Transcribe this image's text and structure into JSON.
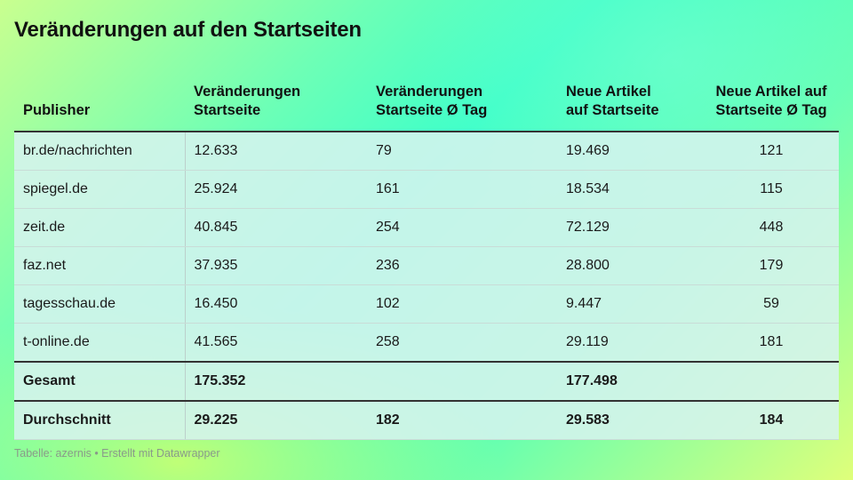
{
  "title": "Veränderungen auf den Startseiten",
  "footer": "Tabelle: azernis • Erstellt mit Datawrapper",
  "chart_data": {
    "type": "table",
    "title": "Veränderungen auf den Startseiten",
    "columns": [
      {
        "l1": "Publisher",
        "l2": ""
      },
      {
        "l1": "Veränderungen",
        "l2": "Startseite"
      },
      {
        "l1": "Veränderungen",
        "l2": "Startseite Ø Tag"
      },
      {
        "l1": "Neue Artikel",
        "l2": "auf Startseite"
      },
      {
        "l1": "Neue Artikel auf",
        "l2": "Startseite Ø Tag"
      }
    ],
    "rows": [
      [
        "br.de/nachrichten",
        "12.633",
        "79",
        "19.469",
        "121"
      ],
      [
        "spiegel.de",
        "25.924",
        "161",
        "18.534",
        "115"
      ],
      [
        "zeit.de",
        "40.845",
        "254",
        "72.129",
        "448"
      ],
      [
        "faz.net",
        "37.935",
        "236",
        "28.800",
        "179"
      ],
      [
        "tagesschau.de",
        "16.450",
        "102",
        "9.447",
        "59"
      ],
      [
        "t-online.de",
        "41.565",
        "258",
        "29.119",
        "181"
      ]
    ],
    "summary_rows": [
      [
        "Gesamt",
        "175.352",
        "",
        "177.498",
        ""
      ],
      [
        "Durchschnitt",
        "29.225",
        "182",
        "29.583",
        "184"
      ]
    ]
  }
}
